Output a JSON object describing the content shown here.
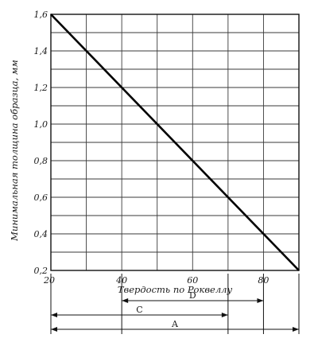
{
  "chart_data": {
    "type": "line",
    "title": "",
    "xlabel": "Твердость по Роквеллу",
    "ylabel": "Минимальная толщина образца, мм",
    "xlim": [
      20,
      90
    ],
    "ylim": [
      0.2,
      1.6
    ],
    "grid": true,
    "x_ticks": [
      20,
      40,
      60,
      80
    ],
    "x_tick_labels": [
      "20",
      "40",
      "60",
      "80"
    ],
    "y_ticks": [
      0.2,
      0.4,
      0.6,
      0.8,
      1.0,
      1.2,
      1.4,
      1.6
    ],
    "y_tick_labels": [
      "0,2",
      "0,4",
      "0,6",
      "0,8",
      "1,0",
      "1,2",
      "1,4",
      "1,6"
    ],
    "series": [
      {
        "x": [
          20,
          90
        ],
        "y": [
          1.6,
          0.2
        ]
      }
    ],
    "ranges": [
      {
        "label": "D",
        "from": 40,
        "to": 80
      },
      {
        "label": "C",
        "from": 20,
        "to": 70
      },
      {
        "label": "A",
        "from": 20,
        "to": 90
      }
    ]
  }
}
